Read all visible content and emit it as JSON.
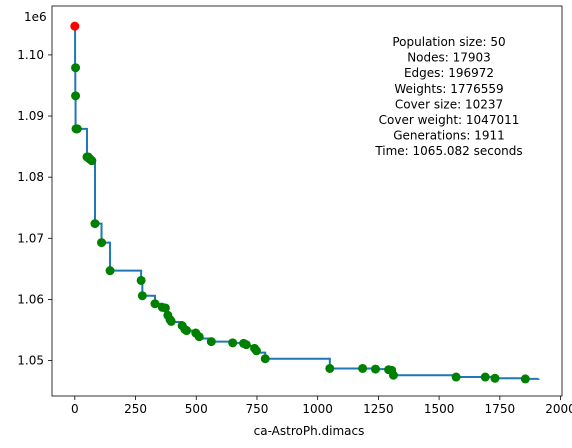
{
  "chart_data": {
    "type": "line",
    "xlabel": "ca-AstroPh.dimacs",
    "ylabel": "",
    "y_offset_label": "1e6",
    "xlim": [
      -94,
      2006
    ],
    "ylim": [
      1044200,
      1108000
    ],
    "xticks": [
      0,
      250,
      500,
      750,
      1000,
      1250,
      1500,
      1750,
      2000
    ],
    "xtick_labels": [
      "0",
      "250",
      "500",
      "750",
      "1000",
      "1250",
      "1500",
      "1750",
      "2000"
    ],
    "yticks": [
      1050000,
      1060000,
      1070000,
      1080000,
      1090000,
      1100000
    ],
    "ytick_labels": [
      "1.05",
      "1.06",
      "1.07",
      "1.08",
      "1.09",
      "1.10"
    ],
    "grid": false,
    "line_color": "#1f77b4",
    "initial_point_color": "#ff0000",
    "improvement_point_color": "#008000",
    "annotation": {
      "lines": [
        "Population size: 50",
        "Nodes: 17903",
        "Edges: 196972",
        "Weights: 1776559",
        "Cover size: 10237",
        "Cover weight: 1047011",
        "Generations: 1911",
        "Time: 1065.082 seconds"
      ],
      "placement": "top-right"
    },
    "initial_point": {
      "x": 0,
      "y": 1104700
    },
    "series": [
      {
        "x": [
          0,
          1,
          2,
          3,
          8,
          50,
          55,
          60,
          62,
          70,
          83,
          110,
          145,
          273,
          278,
          295,
          330,
          360,
          373,
          383,
          392,
          397,
          401,
          442,
          453,
          460,
          498,
          512,
          515,
          520,
          562,
          650,
          695,
          706,
          710,
          740,
          748,
          760,
          784,
          1050,
          1185,
          1238,
          1292,
          1305,
          1312,
          1570,
          1690,
          1730,
          1855,
          1910
        ],
        "y": [
          1104700,
          1097900,
          1093300,
          1087900,
          1087900,
          1083300,
          1083300,
          1083000,
          1083000,
          1082700,
          1072400,
          1069300,
          1064700,
          1063100,
          1060600,
          1060600,
          1059300,
          1058700,
          1058600,
          1057400,
          1056700,
          1056400,
          1056300,
          1055700,
          1055100,
          1054900,
          1054500,
          1053900,
          1053900,
          1053600,
          1053100,
          1052900,
          1052800,
          1052600,
          1052400,
          1052000,
          1051600,
          1051300,
          1050300,
          1048700,
          1048700,
          1048600,
          1048500,
          1048400,
          1047600,
          1047300,
          1047300,
          1047100,
          1047000,
          1047011
        ]
      }
    ],
    "improvement_points": {
      "x": [
        3,
        3,
        5,
        10,
        8,
        50,
        55,
        60,
        62,
        70,
        83,
        110,
        145,
        273,
        278,
        330,
        360,
        373,
        383,
        392,
        397,
        442,
        453,
        460,
        498,
        512,
        562,
        650,
        695,
        706,
        740,
        748,
        784,
        1050,
        1185,
        1238,
        1292,
        1305,
        1312,
        1570,
        1690,
        1730,
        1855
      ],
      "y": [
        1097900,
        1093300,
        1087900,
        1087900,
        1087900,
        1083300,
        1083300,
        1083000,
        1083000,
        1082700,
        1072400,
        1069300,
        1064700,
        1063100,
        1060600,
        1059300,
        1058700,
        1058600,
        1057400,
        1056700,
        1056400,
        1055700,
        1055100,
        1054900,
        1054500,
        1053900,
        1053100,
        1052900,
        1052800,
        1052600,
        1052000,
        1051600,
        1050300,
        1048700,
        1048700,
        1048600,
        1048500,
        1048400,
        1047600,
        1047300,
        1047300,
        1047100,
        1047000
      ]
    }
  }
}
